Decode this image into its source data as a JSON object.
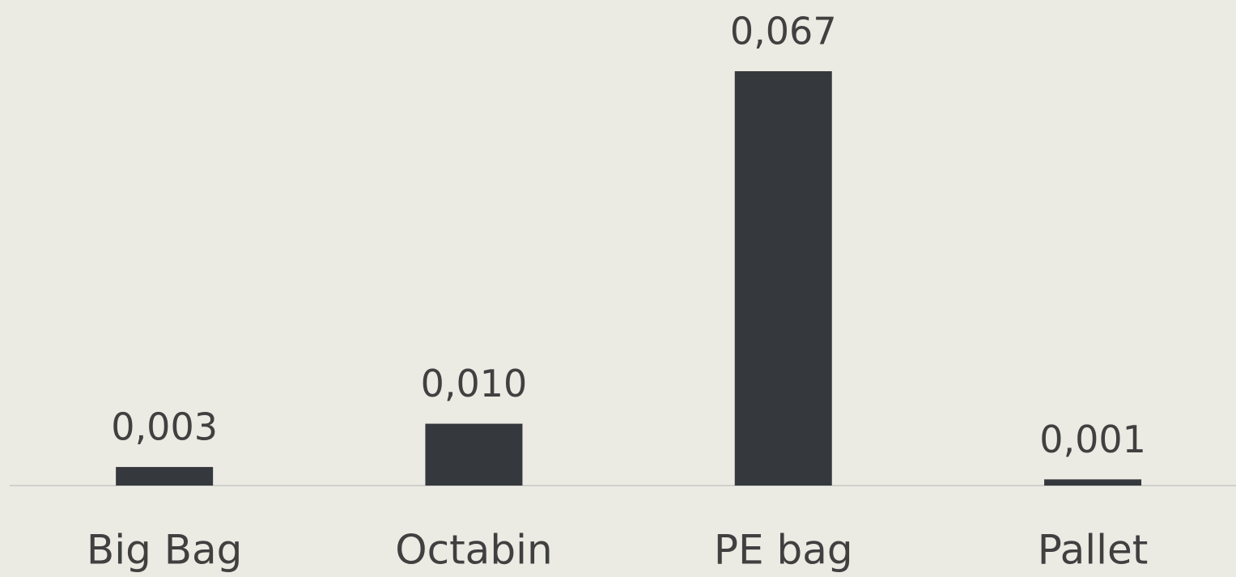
{
  "chart_data": {
    "type": "bar",
    "categories": [
      "Big Bag",
      "Octabin",
      "PE bag",
      "Pallet"
    ],
    "values": [
      0.003,
      0.01,
      0.067,
      0.001
    ],
    "value_labels": [
      "0,003",
      "0,010",
      "0,067",
      "0,001"
    ],
    "color": "#35383d"
  }
}
